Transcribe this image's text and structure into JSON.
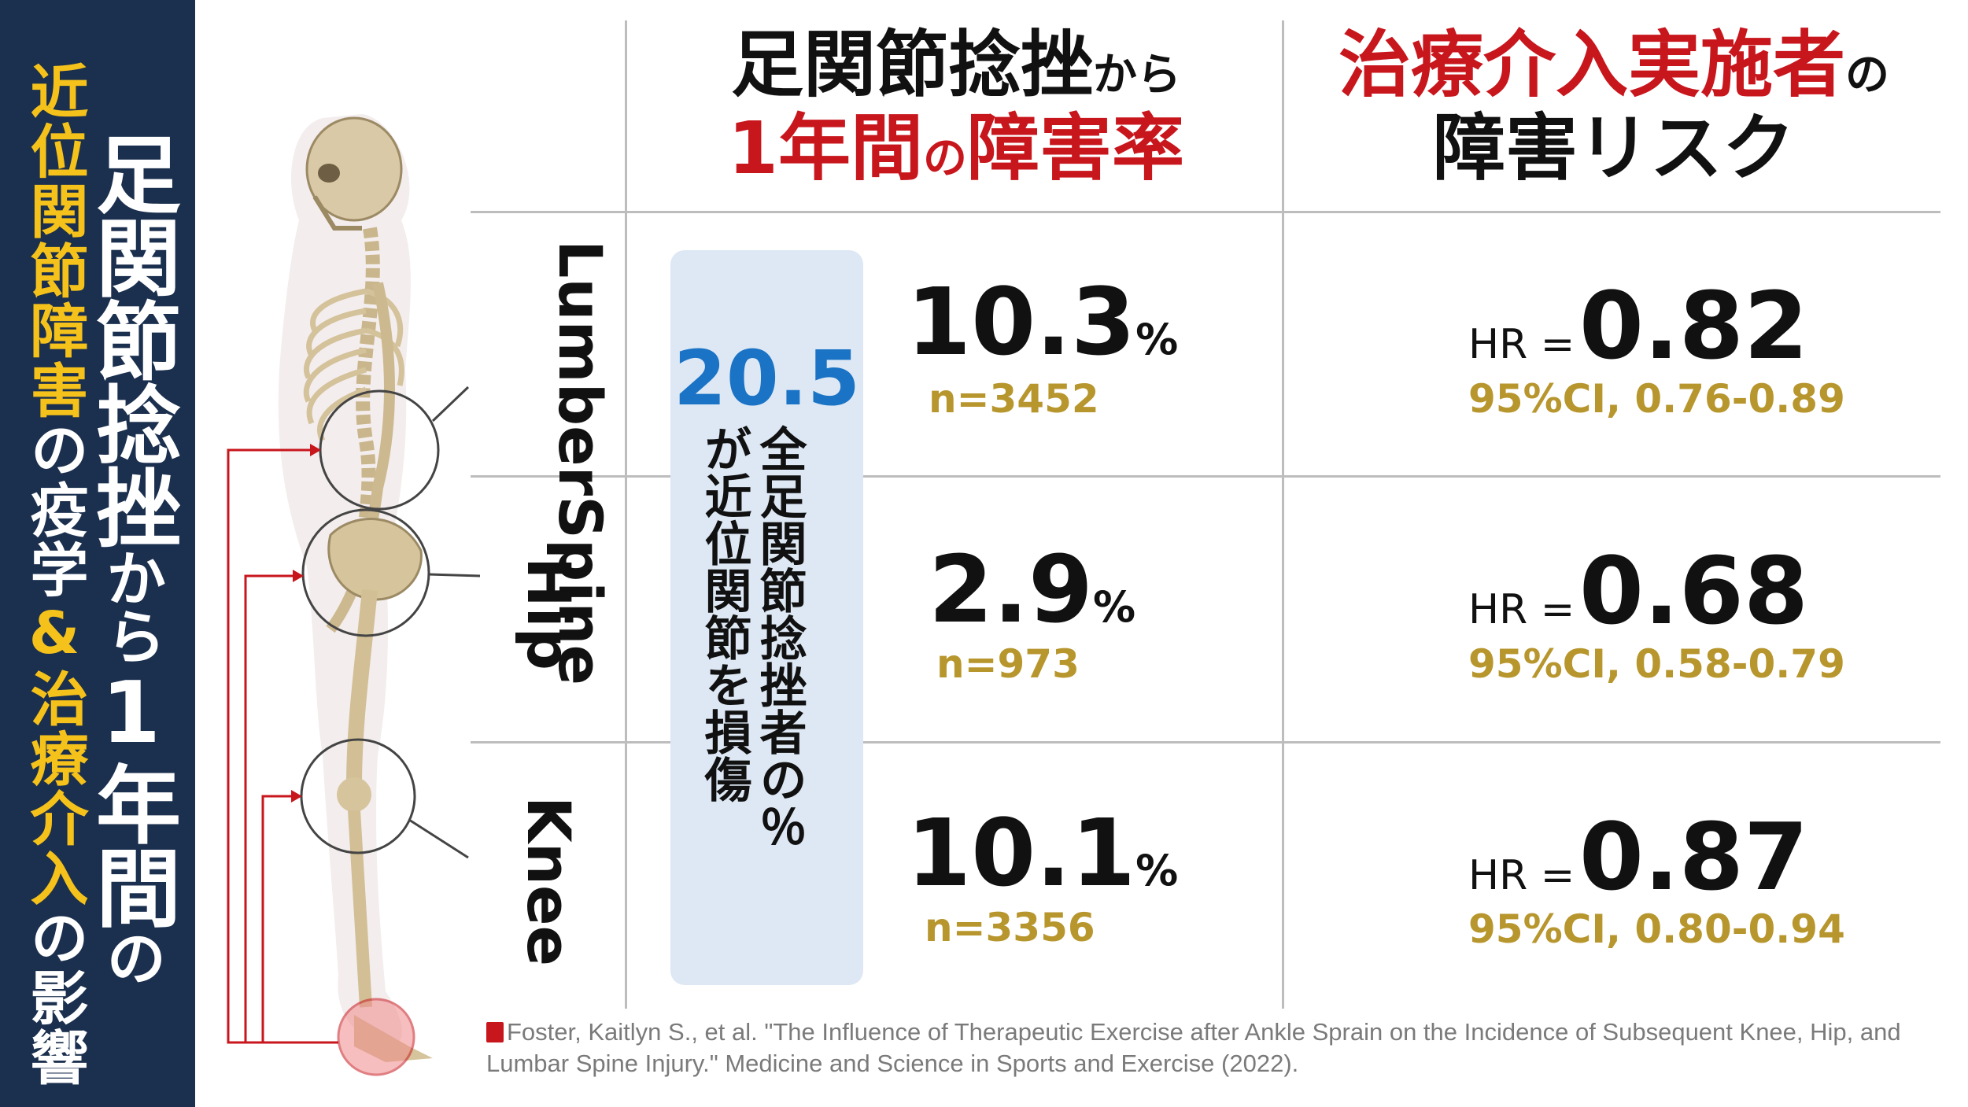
{
  "banner": {
    "title_part1": "足関節捻挫",
    "title_part2": "から",
    "title_part3": "1年間",
    "title_part4": "の",
    "sub_yellow1": "近位関節障害",
    "sub_white1": "の疫学",
    "sub_amp": "&",
    "sub_yellow2": "治療介入",
    "sub_white2": "の影響"
  },
  "header": {
    "col1_line1_big": "足関節捻挫",
    "col1_line1_small": "から",
    "col1_line2_big": "1年間",
    "col1_line2_small": "の",
    "col1_line2_big2": "障害率",
    "col2_line1_big": "治療介入実施者",
    "col2_line1_small": "の",
    "col2_line2": "障害リスク"
  },
  "summary": {
    "value": "20.5",
    "text": "％が近位関節を損傷",
    "text_lead": "全足関節捻挫者の"
  },
  "rows": [
    {
      "label_line1": "Lumber",
      "label_line2": "Spine",
      "pct": "10.3",
      "unit": "%",
      "n": "n=3452",
      "hr_label": "HR =",
      "hr": "0.82",
      "ci": "95%CI, 0.76-0.89"
    },
    {
      "label_line1": "Hip",
      "label_line2": "",
      "pct": "2.9",
      "unit": "%",
      "n": "n=973",
      "hr_label": "HR =",
      "hr": "0.68",
      "ci": "95%CI, 0.58-0.79"
    },
    {
      "label_line1": "Knee",
      "label_line2": "",
      "pct": "10.1",
      "unit": "%",
      "n": "n=3356",
      "hr_label": "HR =",
      "hr": "0.87",
      "ci": "95%CI, 0.80-0.94"
    }
  ],
  "citation": "Foster, Kaitlyn S., et al. \"The Influence of Therapeutic Exercise after Ankle Sprain on the Incidence of Subsequent Knee, Hip, and Lumbar Spine Injury.\" Medicine and Science in Sports and Exercise (2022).",
  "icons": {
    "citation_icon": "book-icon",
    "figure": "skeleton-illustration"
  },
  "colors": {
    "banner_bg": "#1b2f4e",
    "accent_red": "#c8161d",
    "accent_yellow": "#f5c21b",
    "accent_blue": "#1a73c5",
    "gold_text": "#b8962e",
    "box_bg": "#dde8f4"
  }
}
